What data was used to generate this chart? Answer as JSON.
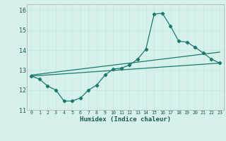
{
  "title": "",
  "xlabel": "Humidex (Indice chaleur)",
  "ylabel": "",
  "bg_color": "#d6f0ec",
  "grid_color": "#c8e8e0",
  "line_color": "#1a7a6e",
  "xlim": [
    -0.5,
    23.5
  ],
  "ylim": [
    11,
    16.3
  ],
  "yticks": [
    11,
    12,
    13,
    14,
    15,
    16
  ],
  "xticks": [
    0,
    1,
    2,
    3,
    4,
    5,
    6,
    7,
    8,
    9,
    10,
    11,
    12,
    13,
    14,
    15,
    16,
    17,
    18,
    19,
    20,
    21,
    22,
    23
  ],
  "line1_x": [
    0,
    1,
    2,
    3,
    4,
    5,
    6,
    7,
    8,
    9,
    10,
    11,
    12,
    13,
    14,
    15,
    16,
    17,
    18,
    19,
    20,
    21,
    22,
    23
  ],
  "line1_y": [
    12.7,
    12.55,
    12.2,
    12.0,
    11.45,
    11.45,
    11.6,
    12.0,
    12.25,
    12.75,
    13.05,
    13.1,
    13.25,
    13.55,
    14.05,
    15.8,
    15.85,
    15.2,
    14.45,
    14.4,
    14.15,
    13.85,
    13.55,
    13.35
  ],
  "line2_x": [
    0,
    23
  ],
  "line2_y": [
    12.7,
    13.35
  ],
  "line3_x": [
    0,
    23
  ],
  "line3_y": [
    12.75,
    13.9
  ],
  "figsize": [
    3.2,
    2.0
  ],
  "dpi": 100
}
